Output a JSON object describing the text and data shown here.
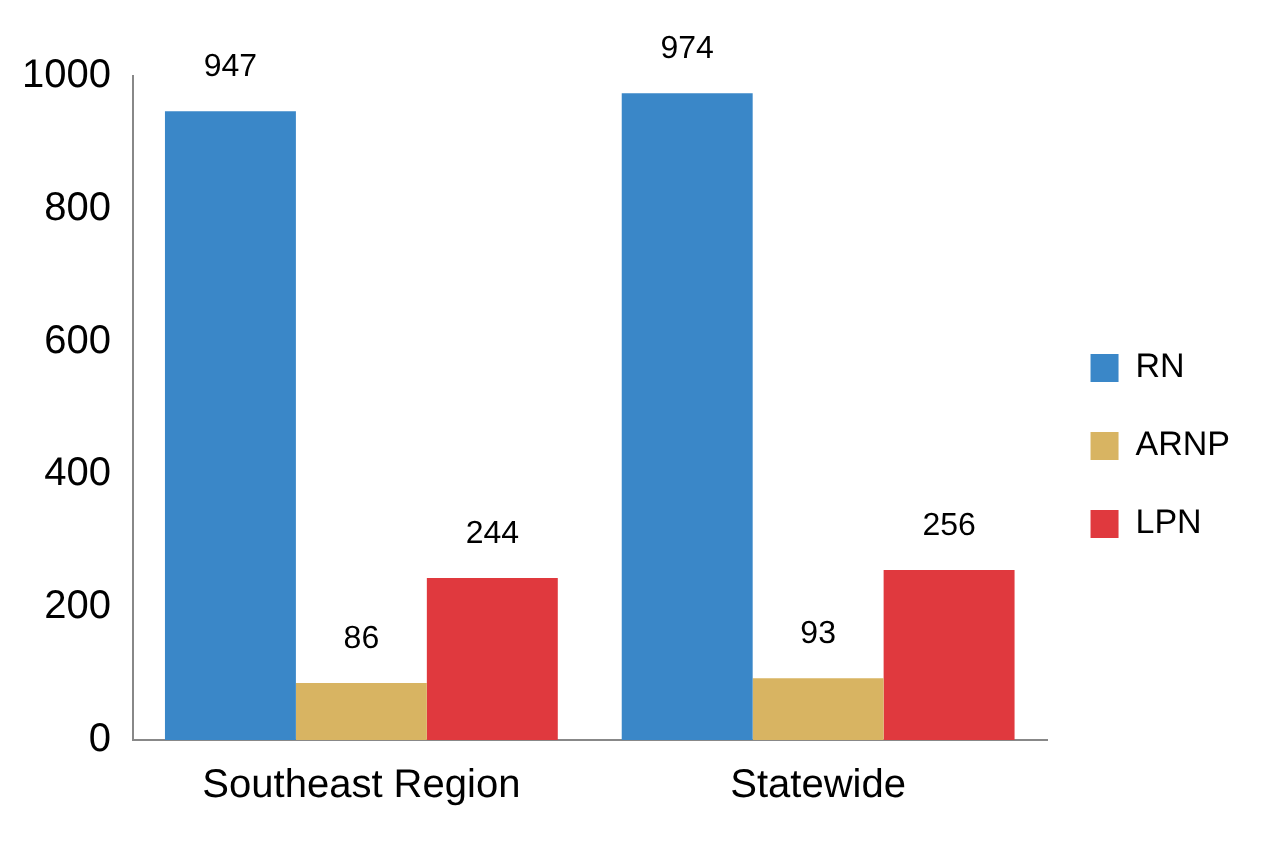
{
  "chart_data": {
    "type": "bar",
    "categories": [
      "Southeast Region",
      "Statewide"
    ],
    "series": [
      {
        "name": "RN",
        "color": "#3a87c8",
        "values": [
          947,
          974
        ]
      },
      {
        "name": "ARNP",
        "color": "#d8b462",
        "values": [
          86,
          93
        ]
      },
      {
        "name": "LPN",
        "color": "#e0393e",
        "values": [
          244,
          256
        ]
      }
    ],
    "ylim": [
      0,
      1000
    ],
    "yticks": [
      0,
      200,
      400,
      600,
      800,
      1000
    ],
    "grid": false,
    "legend": "right",
    "data_labels": true
  }
}
